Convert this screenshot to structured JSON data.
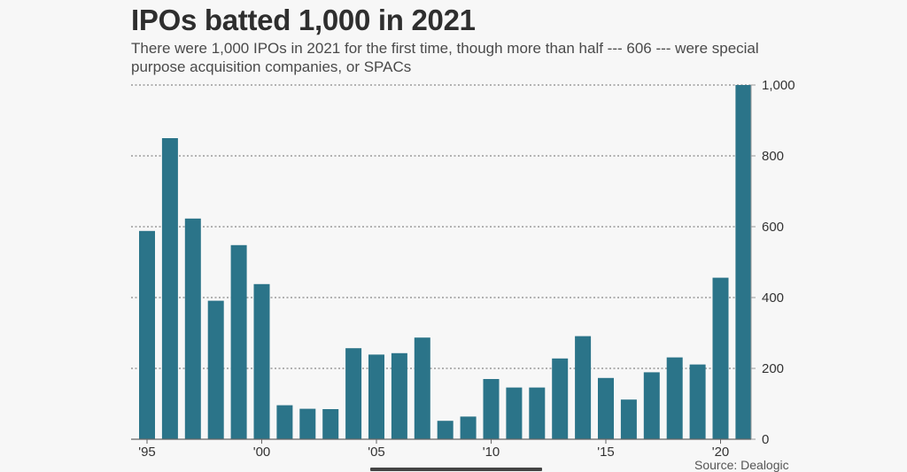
{
  "colors": {
    "bar": "#2b7489",
    "grid": "#9a9a9a",
    "text": "#333333"
  },
  "chart_data": {
    "type": "bar",
    "title": "IPOs batted 1,000 in 2021",
    "subtitle": "There were 1,000 IPOs in 2021 for the first time, though more than half --- 606 --- were special purpose acquisition companies, or SPACs",
    "source": "Source: Dealogic",
    "categories": [
      1995,
      1996,
      1997,
      1998,
      1999,
      2000,
      2001,
      2002,
      2003,
      2004,
      2005,
      2006,
      2007,
      2008,
      2009,
      2010,
      2011,
      2012,
      2013,
      2014,
      2015,
      2016,
      2017,
      2018,
      2019,
      2020,
      2021
    ],
    "values": [
      588,
      850,
      623,
      391,
      548,
      438,
      96,
      86,
      85,
      257,
      239,
      243,
      287,
      52,
      64,
      170,
      146,
      146,
      228,
      291,
      173,
      112,
      189,
      231,
      211,
      456,
      1000
    ],
    "x_tick_labels": [
      {
        "index": 0,
        "label": "'95"
      },
      {
        "index": 5,
        "label": "'00"
      },
      {
        "index": 10,
        "label": "'05"
      },
      {
        "index": 15,
        "label": "'10"
      },
      {
        "index": 20,
        "label": "'15"
      },
      {
        "index": 25,
        "label": "'20"
      }
    ],
    "y_ticks": [
      {
        "value": 0,
        "label": "0"
      },
      {
        "value": 200,
        "label": "200"
      },
      {
        "value": 400,
        "label": "400"
      },
      {
        "value": 600,
        "label": "600"
      },
      {
        "value": 800,
        "label": "800"
      },
      {
        "value": 1000,
        "label": "1,000"
      }
    ],
    "ylim": [
      0,
      1000
    ],
    "xlabel": "",
    "ylabel": "",
    "grid": true,
    "y_axis_side": "right"
  }
}
